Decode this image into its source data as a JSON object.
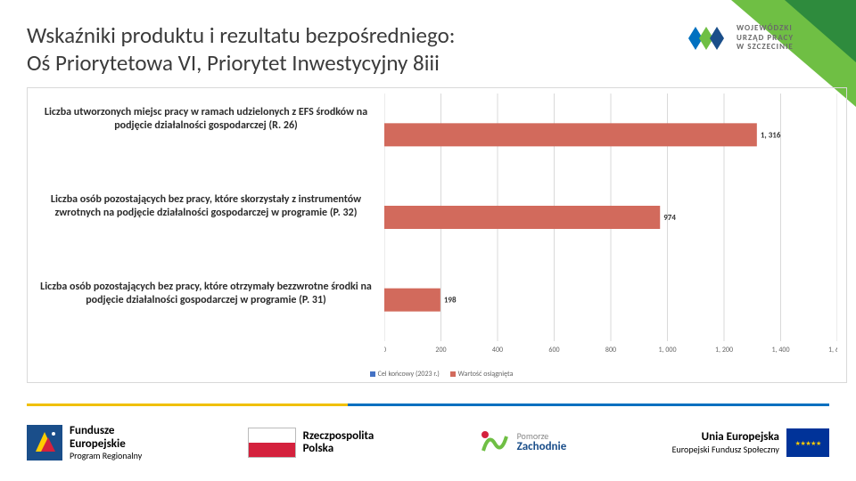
{
  "title_line1": "Wskaźniki produktu i rezultatu bezpośredniego:",
  "title_line2": "Oś Priorytetowa VI, Priorytet Inwestycyjny 8iii",
  "wup_text": "WOJEWÓDZKI\nURZĄD PRACY\nW SZCZECINIE",
  "chart": {
    "type": "bar-horizontal",
    "xlim": [
      0,
      1600
    ],
    "xtick_step": 200,
    "categories": [
      "Liczba utworzonych miejsc pracy w ramach udzielonych z EFS środków na podjęcie działalności gospodarczej (R. 26)",
      "Liczba osób pozostających bez pracy, które skorzystały z instrumentów zwrotnych na podjęcie działalności gospodarczej w programie (P. 32)",
      "Liczba osób pozostających bez pracy, które otrzymały bezzwrotne środki na podjęcie działalności gospodarczej w programie (P. 31)"
    ],
    "series": [
      {
        "name": "Cel końcowy (2023 r.)",
        "color": "#4472c4",
        "values": [
          0,
          0,
          0
        ]
      },
      {
        "name": "Wartość osiągnięta",
        "color": "#d26a5c",
        "values": [
          1316,
          974,
          198
        ],
        "labels": [
          "1, 316",
          "974",
          "198"
        ]
      }
    ],
    "axis_color": "#d9d9d9",
    "label_fontsize": 12,
    "value_fontsize": 9
  },
  "footer": {
    "fe": {
      "big": "Fundusze",
      "big2": "Europejskie",
      "small": "Program Regionalny"
    },
    "rp": {
      "big": "Rzeczpospolita",
      "big2": "Polska"
    },
    "pz": {
      "big": "Pomorze",
      "big2": "Zachodnie"
    },
    "ue": {
      "big": "Unia Europejska",
      "small": "Europejski Fundusz Społeczny"
    }
  }
}
